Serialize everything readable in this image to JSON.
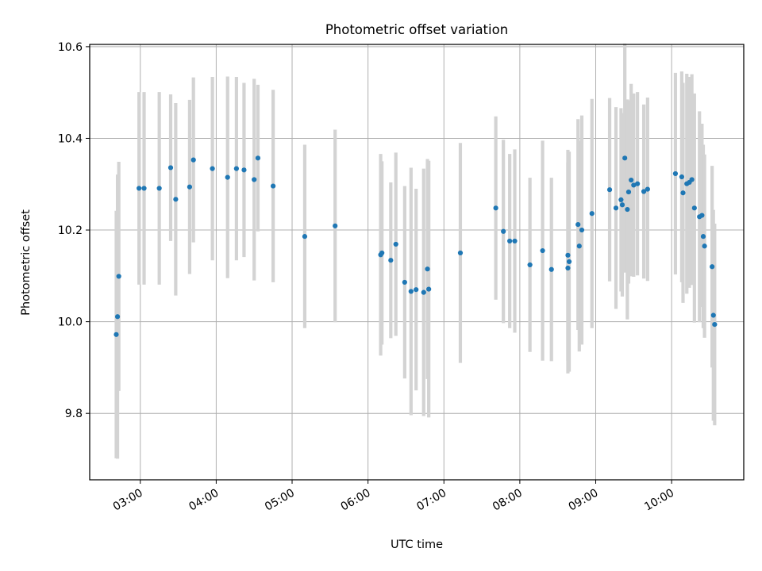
{
  "chart_data": {
    "type": "scatter",
    "title": "Photometric offset variation",
    "xlabel": "UTC time",
    "ylabel": "Photometric offset",
    "xlim": [
      "02:20",
      "10:57"
    ],
    "ylim": [
      9.655,
      10.605
    ],
    "x_ticks": [
      "03:00",
      "04:00",
      "05:00",
      "06:00",
      "07:00",
      "08:00",
      "09:00",
      "10:00"
    ],
    "y_ticks": [
      9.8,
      10.0,
      10.2,
      10.4,
      10.6
    ],
    "y_tick_labels": [
      "9.8",
      "10.0",
      "10.2",
      "10.4",
      "10.6"
    ],
    "grid": true,
    "colors": {
      "marker": "#1f77b4",
      "errorbar": "#d3d3d3",
      "grid": "#b0b0b0"
    },
    "series": [
      {
        "x": [
          "02:41",
          "02:42",
          "02:43",
          "02:59",
          "03:03",
          "03:15",
          "03:24",
          "03:28",
          "03:39",
          "03:42",
          "03:57",
          "04:09",
          "04:16",
          "04:22",
          "04:30",
          "04:33",
          "04:45",
          "05:10",
          "05:34",
          "06:10",
          "06:11",
          "06:18",
          "06:22",
          "06:29",
          "06:34",
          "06:38",
          "06:44",
          "06:47",
          "06:48",
          "07:13",
          "07:41",
          "07:47",
          "07:52",
          "07:56",
          "08:08",
          "08:18",
          "08:25",
          "08:38",
          "08:38",
          "08:39",
          "08:46",
          "08:47",
          "08:49",
          "08:57",
          "09:11",
          "09:16",
          "09:20",
          "09:21",
          "09:23",
          "09:25",
          "09:26",
          "09:28",
          "09:30",
          "09:33",
          "09:38",
          "09:41",
          "10:03",
          "10:08",
          "10:09",
          "10:12",
          "10:14",
          "10:16",
          "10:18",
          "10:22",
          "10:24",
          "10:25",
          "10:26",
          "10:32",
          "10:33"
        ],
        "y": [
          9.972,
          10.011,
          10.099,
          10.291,
          10.291,
          10.291,
          10.336,
          10.267,
          10.294,
          10.353,
          10.334,
          10.315,
          10.334,
          10.331,
          10.31,
          10.357,
          10.296,
          10.186,
          10.209,
          10.146,
          10.15,
          10.134,
          10.169,
          10.086,
          10.066,
          10.07,
          10.064,
          10.115,
          10.071,
          10.15,
          10.248,
          10.197,
          10.176,
          10.176,
          10.124,
          10.155,
          10.114,
          10.117,
          10.145,
          10.131,
          10.212,
          10.165,
          10.2,
          10.236,
          10.288,
          10.248,
          10.266,
          10.255,
          10.357,
          10.245,
          10.283,
          10.309,
          10.298,
          10.301,
          10.284,
          10.289,
          10.323,
          10.316,
          10.281,
          10.301,
          10.304,
          10.31,
          10.248,
          10.229,
          10.232,
          10.186,
          10.165,
          10.12,
          10.014
        ],
        "yerr": [
          0.27,
          0.31,
          0.25,
          0.21,
          0.21,
          0.21,
          0.16,
          0.21,
          0.19,
          0.18,
          0.2,
          0.22,
          0.2,
          0.19,
          0.22,
          0.16,
          0.21,
          0.2,
          0.21,
          0.22,
          0.2,
          0.17,
          0.2,
          0.21,
          0.27,
          0.22,
          0.27,
          0.24,
          0.28,
          0.24,
          0.2,
          0.2,
          0.19,
          0.2,
          0.19,
          0.24,
          0.2,
          0.23,
          0.23,
          0.24,
          0.23,
          0.23,
          0.25,
          0.25,
          0.2,
          0.22,
          0.2,
          0.2,
          0.25,
          0.24,
          0.2,
          0.21,
          0.2,
          0.2,
          0.19,
          0.2,
          0.22,
          0.23,
          0.24,
          0.24,
          0.23,
          0.23,
          0.25,
          0.23,
          0.2,
          0.2,
          0.2,
          0.22,
          0.23
        ]
      }
    ]
  },
  "extra": {
    "x": [
      "10:34"
    ],
    "y": [
      9.994
    ],
    "yerr": [
      0.22
    ]
  }
}
